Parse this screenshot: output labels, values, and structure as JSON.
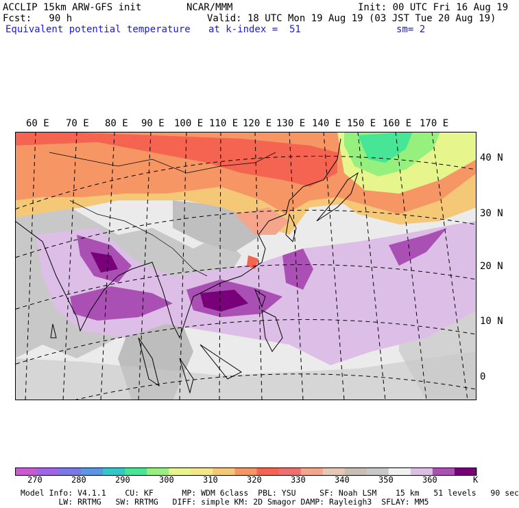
{
  "header": {
    "model": "ACCLIP 15km ARW-GFS init",
    "org": "NCAR/MMM",
    "init": "Init: 00 UTC Fri 16 Aug 19",
    "fcst": "Fcst:   90 h",
    "valid": "Valid: 18 UTC Mon 19 Aug 19 (03 JST Tue 20 Aug 19)",
    "field": "Equivalent potential temperature",
    "level": "at k-index =  51",
    "smooth": "sm= 2"
  },
  "longitude_labels": [
    "60 E",
    "70 E",
    "80 E",
    "90 E",
    "100 E",
    "110 E",
    "120 E",
    "130 E",
    "140 E",
    "150 E",
    "160 E",
    "170 E"
  ],
  "latitude_labels": [
    "40 N",
    "30 N",
    "20 N",
    "10 N",
    "0"
  ],
  "colorbar": {
    "unit": "K",
    "labels": [
      "270",
      "280",
      "290",
      "300",
      "310",
      "320",
      "330",
      "340",
      "350",
      "360"
    ],
    "colors": [
      "#c85ad2",
      "#a064e6",
      "#7878e6",
      "#5a96e6",
      "#32c8c8",
      "#46e696",
      "#96f07d",
      "#e6f58c",
      "#f5e68c",
      "#f5c878",
      "#f59664",
      "#f56450",
      "#f06e6e",
      "#f5a58c",
      "#e6c8b4",
      "#c8beb4",
      "#c8c8c8",
      "#f0f0f0",
      "#dcbee6",
      "#aa50b4",
      "#780078"
    ]
  },
  "footer": {
    "line1": "Model Info: V4.1.1    CU: KF      MP: WDM 6class  PBL: YSU     SF: Noah LSM    15 km   51 levels   90 sec",
    "line2": "        LW: RRTMG   SW: RRTMG   DIFF: simple KM: 2D Smagor DAMP: Rayleigh3  SFLAY: MM5"
  }
}
